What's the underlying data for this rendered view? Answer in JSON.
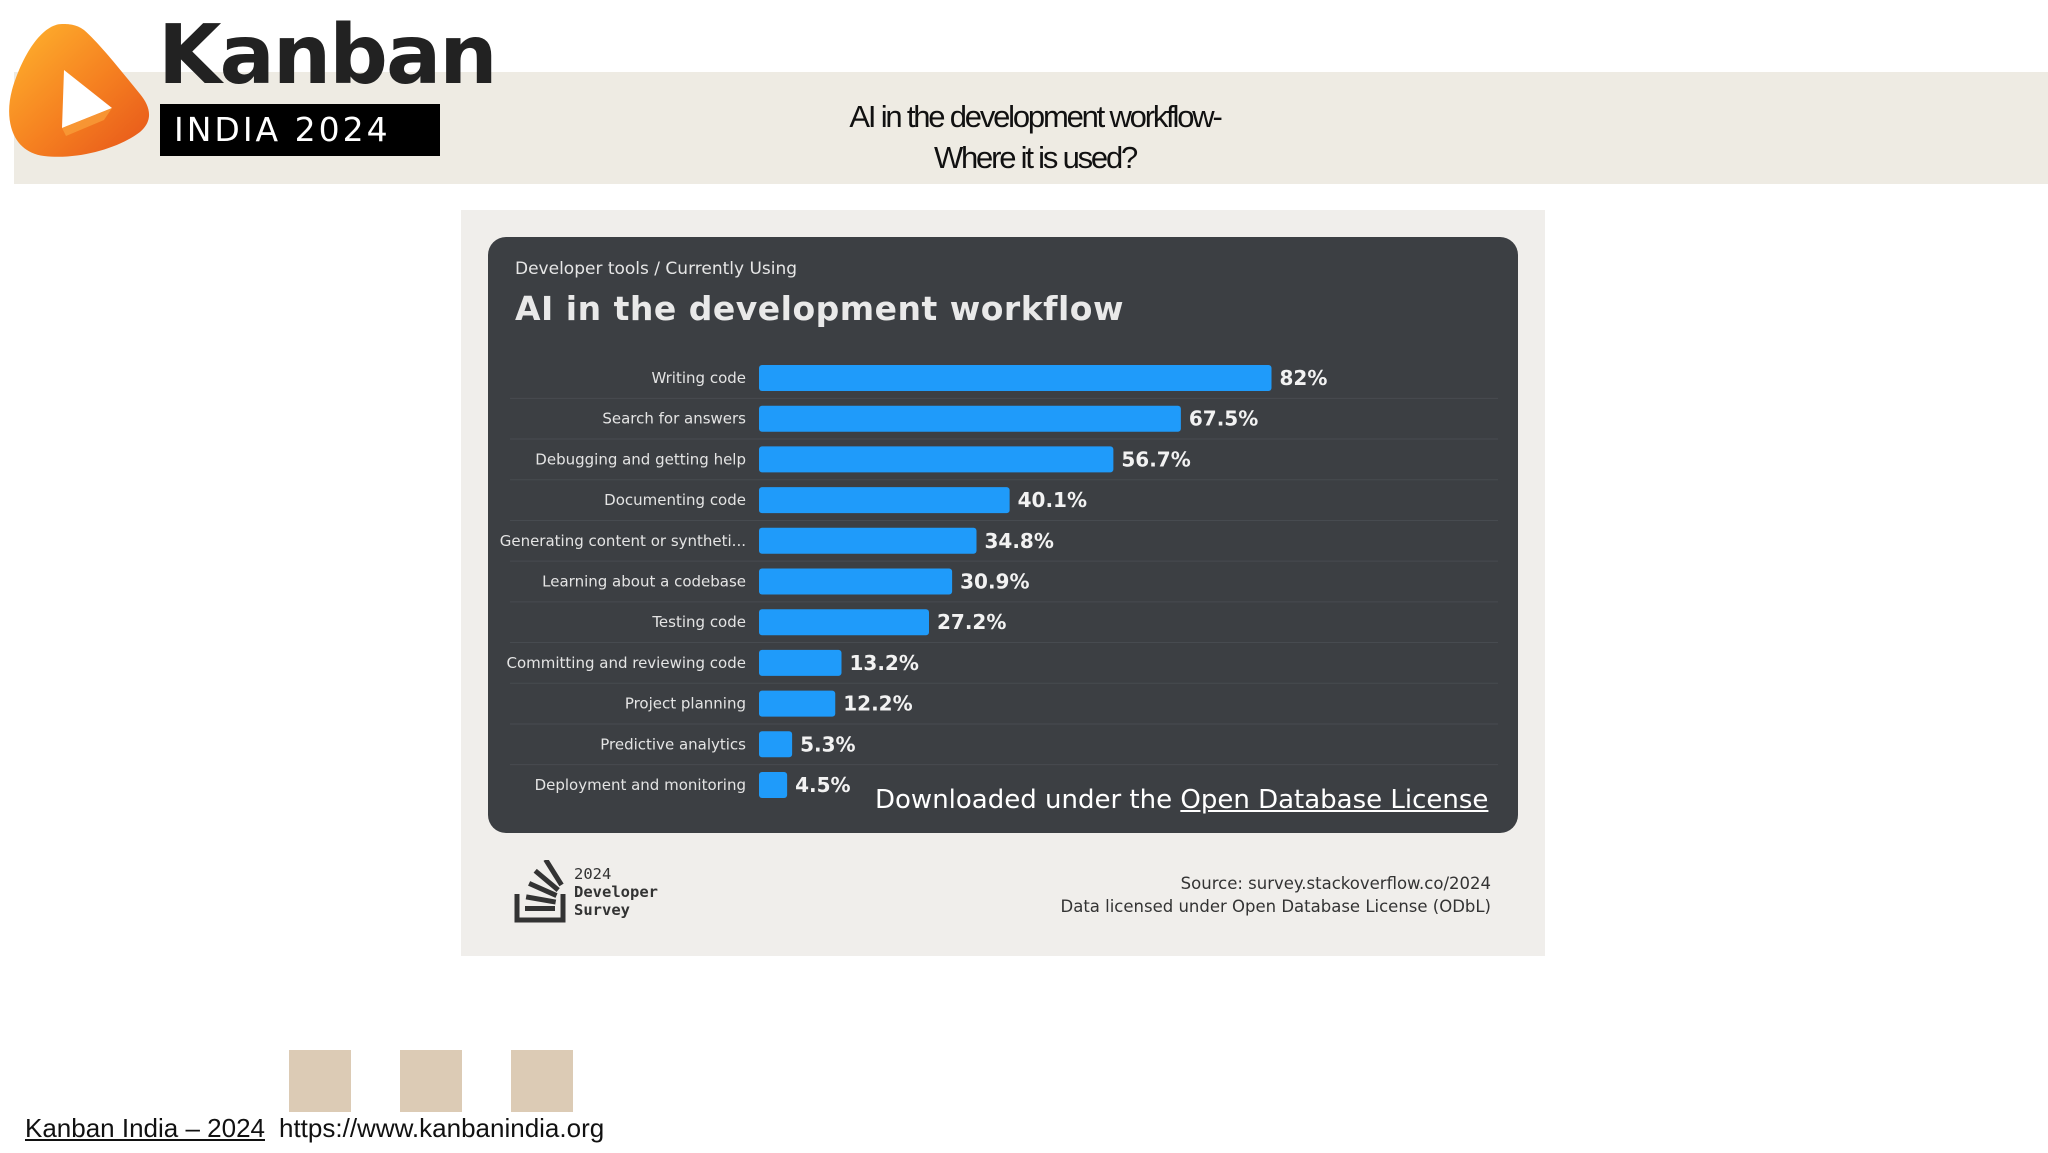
{
  "brand": {
    "name": "Kanban",
    "edition": "INDIA 2024"
  },
  "slide": {
    "title_line1": "AI in the development workflow-",
    "title_line2": "Where it is used?"
  },
  "chart_meta": {
    "kicker": "Developer tools / Currently Using",
    "license_prefix": "Downloaded under the ",
    "license_link": "Open Database License"
  },
  "chart_data": {
    "type": "bar",
    "orientation": "horizontal",
    "title": "AI in the development workflow",
    "categories": [
      "Writing code",
      "Search for answers",
      "Debugging and getting help",
      "Documenting code",
      "Generating content or syntheti...",
      "Learning about a codebase",
      "Testing code",
      "Committing and reviewing code",
      "Project planning",
      "Predictive analytics",
      "Deployment and monitoring"
    ],
    "values": [
      82,
      67.5,
      56.7,
      40.1,
      34.8,
      30.9,
      27.2,
      13.2,
      12.2,
      5.3,
      4.5
    ],
    "value_labels": [
      "82%",
      "67.5%",
      "56.7%",
      "40.1%",
      "34.8%",
      "30.9%",
      "27.2%",
      "13.2%",
      "12.2%",
      "5.3%",
      "4.5%"
    ],
    "xlim": [
      0,
      100
    ],
    "bar_color": "#1f9bfa",
    "background": "#3c3f43",
    "grid": false
  },
  "survey": {
    "year": "2024",
    "line1": "Developer",
    "line2": "Survey"
  },
  "source": {
    "line1": "Source: survey.stackoverflow.co/2024",
    "line2": "Data licensed under Open Database License (ODbL)"
  },
  "footer": {
    "org": "Kanban India – 2024",
    "url": "https://www.kanbanindia.org"
  },
  "colors": {
    "header_band": "#eeebe3",
    "accent_orange": "#f28a1c",
    "deco_square": "#dccbb5"
  }
}
